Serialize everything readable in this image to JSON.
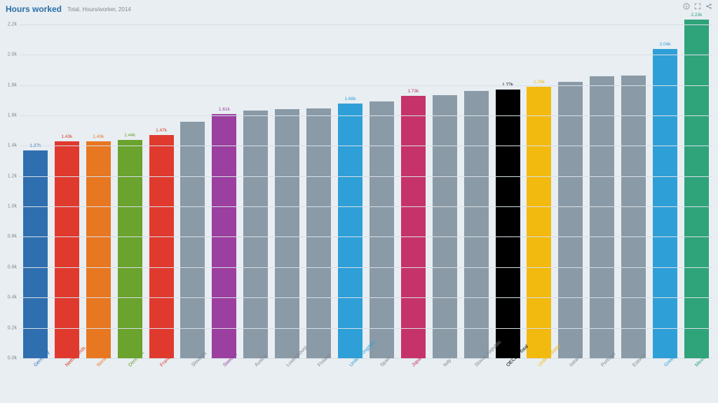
{
  "header": {
    "title": "Hours worked",
    "subtitle": "Total, Hours/worker, 2014"
  },
  "chart": {
    "type": "bar",
    "background_color": "#e8eef2",
    "grid_color": "#d8e0e6",
    "axis_label_color": "#808890",
    "default_bar_color": "#8a9aa6",
    "title_color": "#2a6ea7",
    "ylim_max": 2250,
    "y_ticks": [
      {
        "v": 0,
        "label": "0.0k"
      },
      {
        "v": 200,
        "label": "0.2k"
      },
      {
        "v": 400,
        "label": "0.4k"
      },
      {
        "v": 600,
        "label": "0.6k"
      },
      {
        "v": 800,
        "label": "0.8k"
      },
      {
        "v": 1000,
        "label": "1.0k"
      },
      {
        "v": 1200,
        "label": "1.2k"
      },
      {
        "v": 1400,
        "label": "1.4k"
      },
      {
        "v": 1600,
        "label": "1.6k"
      },
      {
        "v": 1800,
        "label": "1.8k"
      },
      {
        "v": 2000,
        "label": "2.0k"
      },
      {
        "v": 2200,
        "label": "2.2k"
      }
    ],
    "bars": [
      {
        "name": "Germany",
        "value": 1370,
        "label": "1.37k",
        "color": "#2f6fb0",
        "show_label": true
      },
      {
        "name": "Netherlands",
        "value": 1430,
        "label": "1.43k",
        "color": "#e03a2f",
        "show_label": true
      },
      {
        "name": "Norway",
        "value": 1430,
        "label": "1.43k",
        "color": "#e87722",
        "show_label": true
      },
      {
        "name": "Denmark",
        "value": 1440,
        "label": "1.44k",
        "color": "#6aa32d",
        "show_label": true
      },
      {
        "name": "France",
        "value": 1470,
        "label": "1.47k",
        "color": "#e03a2f",
        "show_label": true
      },
      {
        "name": "Slovenia",
        "value": 1560,
        "label": "",
        "color": "#8a9aa6",
        "show_label": false
      },
      {
        "name": "Sweden",
        "value": 1610,
        "label": "1.61k",
        "color": "#9b3fa0",
        "show_label": true
      },
      {
        "name": "Austria",
        "value": 1630,
        "label": "",
        "color": "#8a9aa6",
        "show_label": false
      },
      {
        "name": "Luxembourg",
        "value": 1640,
        "label": "",
        "color": "#8a9aa6",
        "show_label": false
      },
      {
        "name": "Finland",
        "value": 1645,
        "label": "",
        "color": "#8a9aa6",
        "show_label": false
      },
      {
        "name": "United Kingdom",
        "value": 1680,
        "label": "1.68k",
        "color": "#2f9fd8",
        "show_label": true
      },
      {
        "name": "Spain",
        "value": 1690,
        "label": "",
        "color": "#8a9aa6",
        "show_label": false
      },
      {
        "name": "Japan",
        "value": 1730,
        "label": "1.73k",
        "color": "#c6336b",
        "show_label": true
      },
      {
        "name": "Italy",
        "value": 1735,
        "label": "",
        "color": "#8a9aa6",
        "show_label": false
      },
      {
        "name": "Slovak Republic",
        "value": 1760,
        "label": "",
        "color": "#8a9aa6",
        "show_label": false
      },
      {
        "name": "OECD - Total",
        "value": 1770,
        "label": "1.77k",
        "color": "#000000",
        "show_label": true
      },
      {
        "name": "United States",
        "value": 1790,
        "label": "1.79k",
        "color": "#f2b90f",
        "show_label": true
      },
      {
        "name": "Ireland",
        "value": 1820,
        "label": "",
        "color": "#8a9aa6",
        "show_label": false
      },
      {
        "name": "Portugal",
        "value": 1860,
        "label": "",
        "color": "#8a9aa6",
        "show_label": false
      },
      {
        "name": "Estonia",
        "value": 1865,
        "label": "",
        "color": "#8a9aa6",
        "show_label": false
      },
      {
        "name": "Greece",
        "value": 2040,
        "label": "2.04k",
        "color": "#2f9fd8",
        "show_label": true
      },
      {
        "name": "Mexico",
        "value": 2230,
        "label": "2.23k",
        "color": "#2fa37a",
        "show_label": true
      }
    ]
  }
}
